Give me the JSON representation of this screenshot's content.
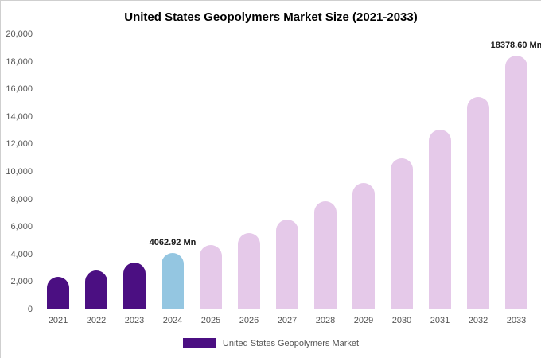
{
  "chart_data": {
    "type": "bar",
    "title": "United States Geopolymers Market Size (2021-2033)",
    "categories": [
      "2021",
      "2022",
      "2023",
      "2024",
      "2025",
      "2026",
      "2027",
      "2028",
      "2029",
      "2030",
      "2031",
      "2032",
      "2033"
    ],
    "values": [
      2300,
      2750,
      3350,
      4062.92,
      4600,
      5500,
      6500,
      7800,
      9150,
      10950,
      13000,
      15350,
      18378.6
    ],
    "xlabel": "",
    "ylabel": "",
    "ylim": [
      0,
      20000
    ],
    "ytick_step": 2000,
    "grid": false,
    "legend": [
      "United States Geopolymers Market"
    ],
    "legend_position": "bottom",
    "bar_colors": [
      "#4b0f82",
      "#4b0f82",
      "#4b0f82",
      "#94c6e1",
      "#e5c9e9",
      "#e5c9e9",
      "#e5c9e9",
      "#e5c9e9",
      "#e5c9e9",
      "#e5c9e9",
      "#e5c9e9",
      "#e5c9e9",
      "#e5c9e9"
    ],
    "colors": {
      "historical": "#4b0f82",
      "highlight": "#94c6e1",
      "forecast": "#e5c9e9",
      "legend_swatch": "#4b0f82",
      "axis_text": "#555555",
      "title_text": "#000000"
    },
    "annotations": [
      {
        "index": 3,
        "text": "4062.92 Mn"
      },
      {
        "index": 12,
        "text": "18378.60 Mn"
      }
    ]
  }
}
